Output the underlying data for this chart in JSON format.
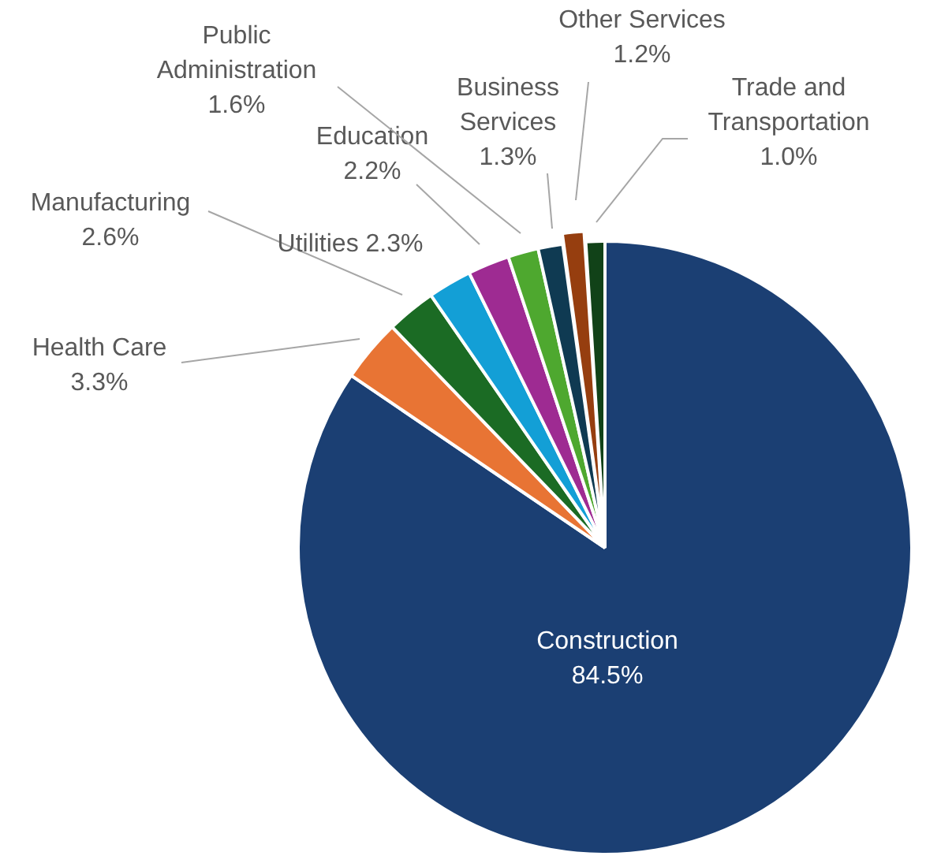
{
  "chart_data": {
    "type": "pie",
    "categories": [
      "Construction",
      "Health Care",
      "Manufacturing",
      "Utilities",
      "Education",
      "Public Administration",
      "Business Services",
      "Other Services",
      "Trade and Transportation"
    ],
    "values": [
      84.5,
      3.3,
      2.6,
      2.3,
      2.2,
      1.6,
      1.3,
      1.2,
      1.0
    ],
    "value_labels": [
      "84.5%",
      "3.3%",
      "2.6%",
      "2.3%",
      "2.2%",
      "1.6%",
      "1.3%",
      "1.2%",
      "1.0%"
    ],
    "colors": [
      "#1b3f73",
      "#e87434",
      "#1b6b24",
      "#139fd6",
      "#9e2b92",
      "#4ea82f",
      "#0f3a52",
      "#963e0f",
      "#114218"
    ],
    "legend": false
  }
}
